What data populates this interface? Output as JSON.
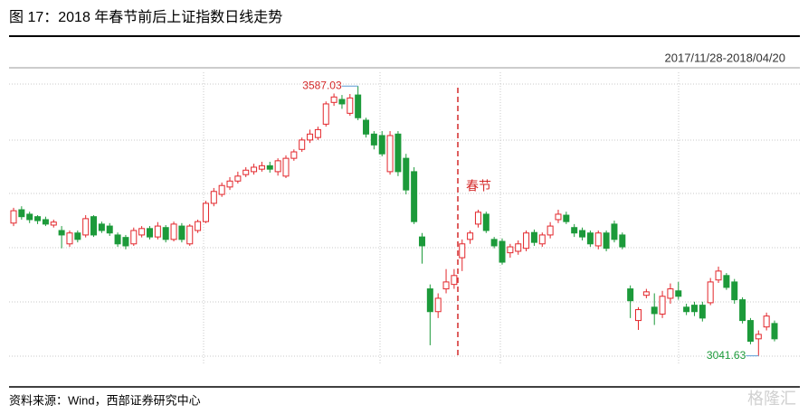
{
  "chart_data": {
    "type": "candlestick",
    "title": "图 17：2018 年春节前后上证指数日线走势",
    "date_range": "2017/11/28-2018/04/20",
    "source": "资料来源：Wind，西部证券研究中心",
    "watermark": "格隆汇",
    "annotations": {
      "high": "3587.03",
      "low": "3041.63",
      "festival": "春节"
    },
    "up_color": "#e3262b",
    "down_color": "#1c9a3a",
    "ylim": [
      3030,
      3624
    ],
    "open": [
      3310,
      3337,
      3328,
      3323,
      3317,
      3306,
      3295,
      3268,
      3290,
      3286,
      3323,
      3308,
      3304,
      3286,
      3281,
      3268,
      3286,
      3299,
      3282,
      3301,
      3277,
      3304,
      3268,
      3295,
      3313,
      3350,
      3368,
      3383,
      3395,
      3408,
      3414,
      3419,
      3426,
      3414,
      3405,
      3441,
      3459,
      3478,
      3483,
      3510,
      3554,
      3560,
      3532,
      3569,
      3518,
      3490,
      3487,
      3414,
      3490,
      3441,
      3414,
      3282,
      3177,
      3131,
      3177,
      3186,
      3240,
      3277,
      3308,
      3328,
      3277,
      3273,
      3250,
      3253,
      3259,
      3291,
      3268,
      3286,
      3317,
      3326,
      3301,
      3295,
      3290,
      3264,
      3290,
      3308,
      3286,
      3177,
      3113,
      3164,
      3140,
      3126,
      3158,
      3173,
      3140,
      3144,
      3144,
      3149,
      3195,
      3204,
      3191,
      3155,
      3113,
      3076,
      3100,
      3107
    ],
    "high": [
      3341,
      3344,
      3333,
      3326,
      3323,
      3317,
      3304,
      3295,
      3295,
      3326,
      3326,
      3313,
      3310,
      3291,
      3286,
      3301,
      3304,
      3304,
      3312,
      3306,
      3313,
      3310,
      3308,
      3317,
      3355,
      3381,
      3392,
      3403,
      3414,
      3423,
      3430,
      3434,
      3434,
      3441,
      3447,
      3459,
      3483,
      3499,
      3505,
      3556,
      3572,
      3569,
      3571,
      3587.03,
      3523,
      3496,
      3496,
      3496,
      3496,
      3450,
      3423,
      3290,
      3186,
      3168,
      3217,
      3217,
      3277,
      3295,
      3337,
      3333,
      3282,
      3279,
      3268,
      3275,
      3295,
      3297,
      3291,
      3312,
      3337,
      3333,
      3308,
      3301,
      3295,
      3295,
      3295,
      3315,
      3291,
      3184,
      3140,
      3177,
      3168,
      3173,
      3188,
      3191,
      3147,
      3151,
      3151,
      3199,
      3222,
      3209,
      3197,
      3160,
      3118,
      3093,
      3129,
      3113
    ],
    "low": [
      3304,
      3317,
      3310,
      3308,
      3304,
      3301,
      3259,
      3262,
      3271,
      3281,
      3282,
      3290,
      3284,
      3262,
      3257,
      3264,
      3281,
      3277,
      3277,
      3271,
      3273,
      3271,
      3264,
      3290,
      3310,
      3344,
      3363,
      3377,
      3390,
      3403,
      3408,
      3414,
      3412,
      3406,
      3401,
      3436,
      3454,
      3472,
      3478,
      3505,
      3547,
      3541,
      3527,
      3518,
      3483,
      3459,
      3445,
      3408,
      3405,
      3368,
      3308,
      3228,
      3063,
      3118,
      3168,
      3177,
      3213,
      3268,
      3301,
      3290,
      3259,
      3226,
      3240,
      3246,
      3253,
      3264,
      3262,
      3279,
      3310,
      3308,
      3282,
      3275,
      3262,
      3257,
      3253,
      3271,
      3257,
      3118,
      3094,
      3158,
      3104,
      3118,
      3147,
      3155,
      3124,
      3122,
      3111,
      3144,
      3189,
      3175,
      3147,
      3107,
      3065,
      3041.63,
      3093,
      3071
    ],
    "close": [
      3335,
      3323,
      3317,
      3315,
      3308,
      3312,
      3286,
      3290,
      3277,
      3319,
      3286,
      3295,
      3290,
      3268,
      3264,
      3295,
      3299,
      3282,
      3304,
      3277,
      3308,
      3277,
      3304,
      3313,
      3350,
      3374,
      3386,
      3395,
      3405,
      3417,
      3423,
      3426,
      3419,
      3436,
      3441,
      3454,
      3478,
      3490,
      3499,
      3551,
      3565,
      3551,
      3563,
      3523,
      3490,
      3468,
      3450,
      3487,
      3414,
      3377,
      3313,
      3264,
      3131,
      3158,
      3191,
      3204,
      3268,
      3290,
      3332,
      3295,
      3264,
      3231,
      3262,
      3268,
      3290,
      3271,
      3286,
      3304,
      3328,
      3313,
      3290,
      3282,
      3268,
      3290,
      3259,
      3277,
      3262,
      3153,
      3135,
      3171,
      3127,
      3162,
      3177,
      3162,
      3131,
      3131,
      3118,
      3191,
      3213,
      3180,
      3155,
      3113,
      3071,
      3085,
      3122,
      3076
    ]
  }
}
